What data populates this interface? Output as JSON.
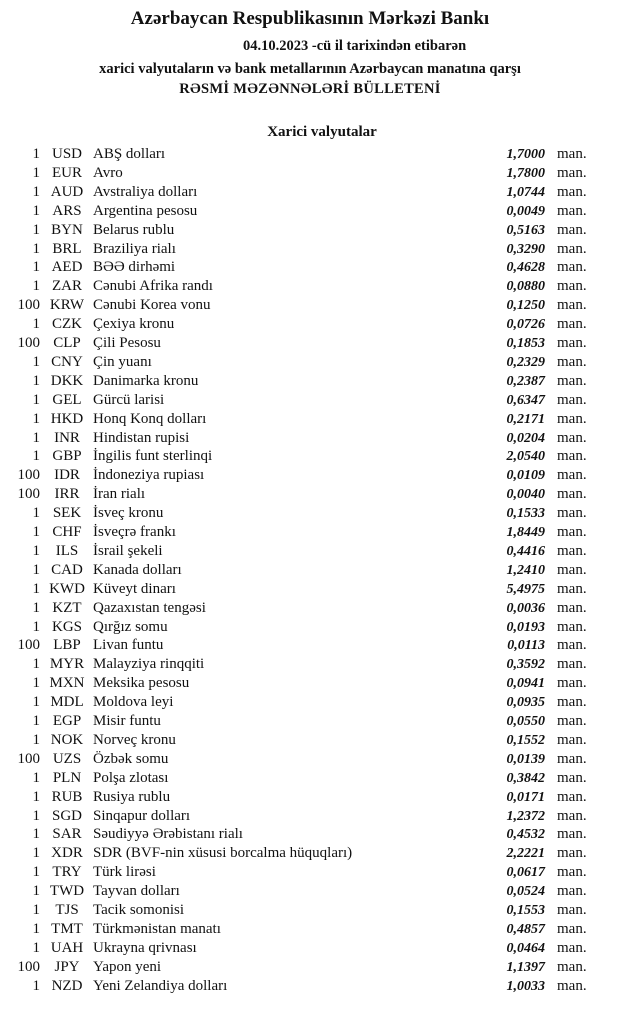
{
  "header": {
    "bank": "Azərbaycan Respublikasının Mərkəzi Bankı",
    "date_line": "04.10.2023 -cü il tarixindən etibarən",
    "subtitle": "xarici valyutaların və bank metallarının Azərbaycan manatına qarşı",
    "title": "RƏSMİ MƏZƏNNƏLƏRİ BÜLLETENİ"
  },
  "section_title": "Xarici valyutalar",
  "unit": "man.",
  "rates": [
    {
      "nominal": "1",
      "code": "USD",
      "name": "ABŞ dolları",
      "value": "1,7000"
    },
    {
      "nominal": "1",
      "code": "EUR",
      "name": "Avro",
      "value": "1,7800"
    },
    {
      "nominal": "1",
      "code": "AUD",
      "name": "Avstraliya dolları",
      "value": "1,0744"
    },
    {
      "nominal": "1",
      "code": "ARS",
      "name": "Argentina pesosu",
      "value": "0,0049"
    },
    {
      "nominal": "1",
      "code": "BYN",
      "name": "Belarus rublu",
      "value": "0,5163"
    },
    {
      "nominal": "1",
      "code": "BRL",
      "name": "Braziliya rialı",
      "value": "0,3290"
    },
    {
      "nominal": "1",
      "code": "AED",
      "name": "BƏƏ dirhəmi",
      "value": "0,4628"
    },
    {
      "nominal": "1",
      "code": "ZAR",
      "name": "Cənubi Afrika randı",
      "value": "0,0880"
    },
    {
      "nominal": "100",
      "code": "KRW",
      "name": "Cənubi Korea vonu",
      "value": "0,1250"
    },
    {
      "nominal": "1",
      "code": "CZK",
      "name": "Çexiya kronu",
      "value": "0,0726"
    },
    {
      "nominal": "100",
      "code": "CLP",
      "name": "Çili Pesosu",
      "value": "0,1853"
    },
    {
      "nominal": "1",
      "code": "CNY",
      "name": "Çin yuanı",
      "value": "0,2329"
    },
    {
      "nominal": "1",
      "code": "DKK",
      "name": "Danimarka kronu",
      "value": "0,2387"
    },
    {
      "nominal": "1",
      "code": "GEL",
      "name": "Gürcü larisi",
      "value": "0,6347"
    },
    {
      "nominal": "1",
      "code": "HKD",
      "name": "Honq Konq dolları",
      "value": "0,2171"
    },
    {
      "nominal": "1",
      "code": "INR",
      "name": "Hindistan rupisi",
      "value": "0,0204"
    },
    {
      "nominal": "1",
      "code": "GBP",
      "name": "İngilis funt sterlinqi",
      "value": "2,0540"
    },
    {
      "nominal": "100",
      "code": "IDR",
      "name": "İndoneziya rupiası",
      "value": "0,0109"
    },
    {
      "nominal": "100",
      "code": "IRR",
      "name": "İran rialı",
      "value": "0,0040"
    },
    {
      "nominal": "1",
      "code": "SEK",
      "name": "İsveç kronu",
      "value": "0,1533"
    },
    {
      "nominal": "1",
      "code": "CHF",
      "name": "İsveçrə frankı",
      "value": "1,8449"
    },
    {
      "nominal": "1",
      "code": "ILS",
      "name": "İsrail şekeli",
      "value": "0,4416"
    },
    {
      "nominal": "1",
      "code": "CAD",
      "name": "Kanada dolları",
      "value": "1,2410"
    },
    {
      "nominal": "1",
      "code": "KWD",
      "name": "Küveyt dinarı",
      "value": "5,4975"
    },
    {
      "nominal": "1",
      "code": "KZT",
      "name": "Qazaxıstan tengəsi",
      "value": "0,0036"
    },
    {
      "nominal": "1",
      "code": "KGS",
      "name": "Qırğız somu",
      "value": "0,0193"
    },
    {
      "nominal": "100",
      "code": "LBP",
      "name": "Livan funtu",
      "value": "0,0113"
    },
    {
      "nominal": "1",
      "code": "MYR",
      "name": "Malayziya rinqqiti",
      "value": "0,3592"
    },
    {
      "nominal": "1",
      "code": "MXN",
      "name": "Meksika pesosu",
      "value": "0,0941"
    },
    {
      "nominal": "1",
      "code": "MDL",
      "name": "Moldova leyi",
      "value": "0,0935"
    },
    {
      "nominal": "1",
      "code": "EGP",
      "name": "Misir funtu",
      "value": "0,0550"
    },
    {
      "nominal": "1",
      "code": "NOK",
      "name": "Norveç kronu",
      "value": "0,1552"
    },
    {
      "nominal": "100",
      "code": "UZS",
      "name": "Özbək somu",
      "value": "0,0139"
    },
    {
      "nominal": "1",
      "code": "PLN",
      "name": "Polşa zlotası",
      "value": "0,3842"
    },
    {
      "nominal": "1",
      "code": "RUB",
      "name": "Rusiya rublu",
      "value": "0,0171"
    },
    {
      "nominal": "1",
      "code": "SGD",
      "name": "Sinqapur dolları",
      "value": "1,2372"
    },
    {
      "nominal": "1",
      "code": "SAR",
      "name": "Səudiyyə Ərəbistanı rialı",
      "value": "0,4532"
    },
    {
      "nominal": "1",
      "code": "XDR",
      "name": "SDR (BVF-nin xüsusi borcalma hüquqları)",
      "value": "2,2221"
    },
    {
      "nominal": "1",
      "code": "TRY",
      "name": "Türk lirəsi",
      "value": "0,0617"
    },
    {
      "nominal": "1",
      "code": "TWD",
      "name": "Tayvan dolları",
      "value": "0,0524"
    },
    {
      "nominal": "1",
      "code": "TJS",
      "name": "Tacik somonisi",
      "value": "0,1553"
    },
    {
      "nominal": "1",
      "code": "TMT",
      "name": "Türkmənistan manatı",
      "value": "0,4857"
    },
    {
      "nominal": "1",
      "code": "UAH",
      "name": "Ukrayna qrivnası",
      "value": "0,0464"
    },
    {
      "nominal": "100",
      "code": "JPY",
      "name": "Yapon yeni",
      "value": "1,1397"
    },
    {
      "nominal": "1",
      "code": "NZD",
      "name": "Yeni Zelandiya dolları",
      "value": "1,0033"
    }
  ]
}
